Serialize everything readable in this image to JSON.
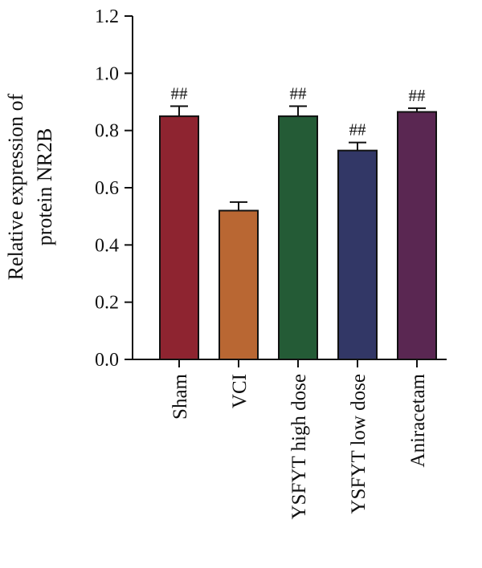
{
  "chart_data": {
    "type": "bar",
    "categories": [
      "Sham",
      "VCI",
      "YSFYT high dose",
      "YSFYT low dose",
      "Aniracetam"
    ],
    "values": [
      0.85,
      0.52,
      0.85,
      0.73,
      0.865
    ],
    "errors": [
      0.035,
      0.03,
      0.035,
      0.028,
      0.013
    ],
    "annotations": [
      "##",
      "",
      "##",
      "##",
      "##"
    ],
    "colors": [
      "#8e2430",
      "#b96733",
      "#245b36",
      "#323766",
      "#5a2752"
    ],
    "ylabel_lines": [
      "Relative expression of",
      "protein NR2B"
    ],
    "ylim": [
      0,
      1.2
    ],
    "yticks": [
      "0.0",
      "0.2",
      "0.4",
      "0.6",
      "0.8",
      "1.0",
      "1.2"
    ],
    "grid": false,
    "legend": "none"
  }
}
